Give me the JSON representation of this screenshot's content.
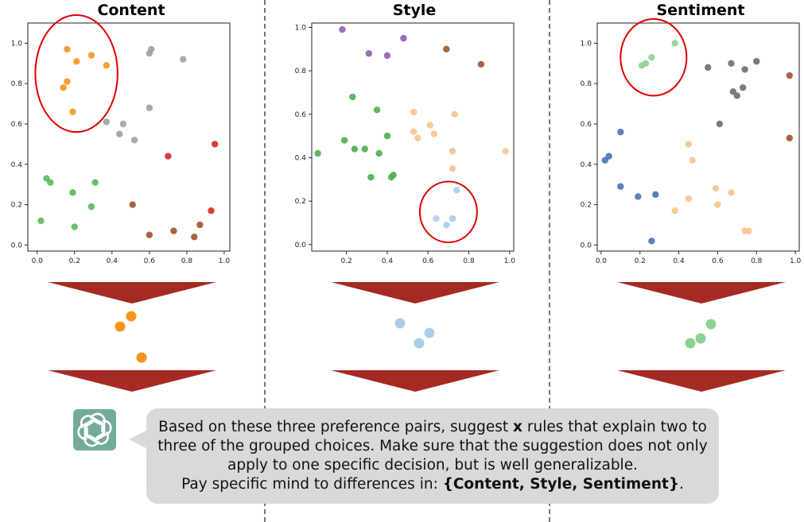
{
  "panels": [
    {
      "title": "Content",
      "x_ticks": [
        "0.0",
        "0.2",
        "0.4",
        "0.6",
        "0.8",
        "1.0"
      ],
      "y_ticks": [
        "0.0",
        "0.2",
        "0.4",
        "0.6",
        "0.8",
        "1.0"
      ],
      "highlight": {
        "cx": 0.21,
        "cy": 0.85,
        "rx": 0.22,
        "ry": 0.29,
        "color": "#e00000"
      },
      "selected_color": "#f7941d",
      "points": [
        {
          "x": 0.16,
          "y": 0.97,
          "c": "#f7941d"
        },
        {
          "x": 0.29,
          "y": 0.94,
          "c": "#f7941d"
        },
        {
          "x": 0.21,
          "y": 0.91,
          "c": "#f7941d"
        },
        {
          "x": 0.37,
          "y": 0.89,
          "c": "#f7941d"
        },
        {
          "x": 0.16,
          "y": 0.81,
          "c": "#f7941d"
        },
        {
          "x": 0.14,
          "y": 0.78,
          "c": "#f7941d"
        },
        {
          "x": 0.19,
          "y": 0.66,
          "c": "#f7941d"
        },
        {
          "x": 0.61,
          "y": 0.97,
          "c": "#a0a0a0"
        },
        {
          "x": 0.6,
          "y": 0.95,
          "c": "#a0a0a0"
        },
        {
          "x": 0.78,
          "y": 0.92,
          "c": "#a0a0a0"
        },
        {
          "x": 0.6,
          "y": 0.68,
          "c": "#a0a0a0"
        },
        {
          "x": 0.37,
          "y": 0.61,
          "c": "#a0a0a0"
        },
        {
          "x": 0.46,
          "y": 0.6,
          "c": "#a0a0a0"
        },
        {
          "x": 0.44,
          "y": 0.55,
          "c": "#a0a0a0"
        },
        {
          "x": 0.52,
          "y": 0.52,
          "c": "#a0a0a0"
        },
        {
          "x": 0.95,
          "y": 0.5,
          "c": "#d62728"
        },
        {
          "x": 0.7,
          "y": 0.44,
          "c": "#d62728"
        },
        {
          "x": 0.93,
          "y": 0.17,
          "c": "#d62728"
        },
        {
          "x": 0.05,
          "y": 0.33,
          "c": "#5cb85c"
        },
        {
          "x": 0.07,
          "y": 0.31,
          "c": "#5cb85c"
        },
        {
          "x": 0.31,
          "y": 0.31,
          "c": "#5cb85c"
        },
        {
          "x": 0.19,
          "y": 0.26,
          "c": "#5cb85c"
        },
        {
          "x": 0.29,
          "y": 0.19,
          "c": "#5cb85c"
        },
        {
          "x": 0.02,
          "y": 0.12,
          "c": "#5cb85c"
        },
        {
          "x": 0.2,
          "y": 0.09,
          "c": "#5cb85c"
        },
        {
          "x": 0.51,
          "y": 0.2,
          "c": "#a0522d"
        },
        {
          "x": 0.6,
          "y": 0.05,
          "c": "#a0522d"
        },
        {
          "x": 0.73,
          "y": 0.07,
          "c": "#a0522d"
        },
        {
          "x": 0.84,
          "y": 0.04,
          "c": "#a0522d"
        },
        {
          "x": 0.87,
          "y": 0.1,
          "c": "#a0522d"
        }
      ]
    },
    {
      "title": "Style",
      "x_ticks": [
        "0.2",
        "0.4",
        "0.6",
        "0.8",
        "1.0"
      ],
      "y_ticks": [
        "0.0",
        "0.2",
        "0.4",
        "0.6",
        "0.8",
        "1.0"
      ],
      "highlight": {
        "cx": 0.7,
        "cy": 0.15,
        "rx": 0.14,
        "ry": 0.14,
        "color": "#e00000"
      },
      "selected_color": "#aecde8",
      "points": [
        {
          "x": 0.18,
          "y": 0.99,
          "c": "#8c5fb3"
        },
        {
          "x": 0.48,
          "y": 0.95,
          "c": "#8c5fb3"
        },
        {
          "x": 0.31,
          "y": 0.88,
          "c": "#8c5fb3"
        },
        {
          "x": 0.4,
          "y": 0.87,
          "c": "#8c5fb3"
        },
        {
          "x": 0.69,
          "y": 0.9,
          "c": "#a0522d"
        },
        {
          "x": 0.86,
          "y": 0.83,
          "c": "#a0522d"
        },
        {
          "x": 0.23,
          "y": 0.68,
          "c": "#4cae4c"
        },
        {
          "x": 0.35,
          "y": 0.62,
          "c": "#4cae4c"
        },
        {
          "x": 0.4,
          "y": 0.5,
          "c": "#4cae4c"
        },
        {
          "x": 0.19,
          "y": 0.48,
          "c": "#4cae4c"
        },
        {
          "x": 0.24,
          "y": 0.44,
          "c": "#4cae4c"
        },
        {
          "x": 0.29,
          "y": 0.44,
          "c": "#4cae4c"
        },
        {
          "x": 0.06,
          "y": 0.42,
          "c": "#4cae4c"
        },
        {
          "x": 0.36,
          "y": 0.42,
          "c": "#4cae4c"
        },
        {
          "x": 0.43,
          "y": 0.32,
          "c": "#4cae4c"
        },
        {
          "x": 0.42,
          "y": 0.31,
          "c": "#4cae4c"
        },
        {
          "x": 0.32,
          "y": 0.31,
          "c": "#4cae4c"
        },
        {
          "x": 0.53,
          "y": 0.61,
          "c": "#f7c48f"
        },
        {
          "x": 0.73,
          "y": 0.6,
          "c": "#f7c48f"
        },
        {
          "x": 0.61,
          "y": 0.55,
          "c": "#f7c48f"
        },
        {
          "x": 0.53,
          "y": 0.52,
          "c": "#f7c48f"
        },
        {
          "x": 0.63,
          "y": 0.51,
          "c": "#f7c48f"
        },
        {
          "x": 0.55,
          "y": 0.49,
          "c": "#f7c48f"
        },
        {
          "x": 0.72,
          "y": 0.43,
          "c": "#f7c48f"
        },
        {
          "x": 0.98,
          "y": 0.43,
          "c": "#f7c48f"
        },
        {
          "x": 0.72,
          "y": 0.35,
          "c": "#f7c48f"
        },
        {
          "x": 0.74,
          "y": 0.25,
          "c": "#aecde8"
        },
        {
          "x": 0.64,
          "y": 0.12,
          "c": "#aecde8"
        },
        {
          "x": 0.72,
          "y": 0.12,
          "c": "#aecde8"
        },
        {
          "x": 0.69,
          "y": 0.09,
          "c": "#aecde8"
        }
      ]
    },
    {
      "title": "Sentiment",
      "x_ticks": [
        "0.0",
        "0.2",
        "0.4",
        "0.6",
        "0.8",
        "1.0"
      ],
      "y_ticks": [
        "0.0",
        "0.2",
        "0.4",
        "0.6",
        "0.8",
        "1.0"
      ],
      "highlight": {
        "cx": 0.27,
        "cy": 0.93,
        "rx": 0.17,
        "ry": 0.19,
        "color": "#e00000"
      },
      "selected_color": "#8fd18f",
      "points": [
        {
          "x": 0.38,
          "y": 1.0,
          "c": "#8fd18f"
        },
        {
          "x": 0.26,
          "y": 0.93,
          "c": "#8fd18f"
        },
        {
          "x": 0.23,
          "y": 0.9,
          "c": "#8fd18f"
        },
        {
          "x": 0.21,
          "y": 0.89,
          "c": "#8fd18f"
        },
        {
          "x": 0.67,
          "y": 0.9,
          "c": "#6e6e6e"
        },
        {
          "x": 0.8,
          "y": 0.91,
          "c": "#6e6e6e"
        },
        {
          "x": 0.55,
          "y": 0.88,
          "c": "#6e6e6e"
        },
        {
          "x": 0.74,
          "y": 0.87,
          "c": "#6e6e6e"
        },
        {
          "x": 0.73,
          "y": 0.78,
          "c": "#6e6e6e"
        },
        {
          "x": 0.68,
          "y": 0.76,
          "c": "#6e6e6e"
        },
        {
          "x": 0.7,
          "y": 0.74,
          "c": "#6e6e6e"
        },
        {
          "x": 0.61,
          "y": 0.6,
          "c": "#6e6e6e"
        },
        {
          "x": 0.97,
          "y": 0.84,
          "c": "#a0522d"
        },
        {
          "x": 0.97,
          "y": 0.53,
          "c": "#a0522d"
        },
        {
          "x": 0.1,
          "y": 0.56,
          "c": "#4a72b8"
        },
        {
          "x": 0.04,
          "y": 0.44,
          "c": "#4a72b8"
        },
        {
          "x": 0.02,
          "y": 0.42,
          "c": "#4a72b8"
        },
        {
          "x": 0.1,
          "y": 0.29,
          "c": "#4a72b8"
        },
        {
          "x": 0.19,
          "y": 0.24,
          "c": "#4a72b8"
        },
        {
          "x": 0.28,
          "y": 0.25,
          "c": "#4a72b8"
        },
        {
          "x": 0.26,
          "y": 0.02,
          "c": "#4a72b8"
        },
        {
          "x": 0.45,
          "y": 0.5,
          "c": "#f7c48f"
        },
        {
          "x": 0.47,
          "y": 0.42,
          "c": "#f7c48f"
        },
        {
          "x": 0.59,
          "y": 0.28,
          "c": "#f7c48f"
        },
        {
          "x": 0.67,
          "y": 0.26,
          "c": "#f7c48f"
        },
        {
          "x": 0.45,
          "y": 0.23,
          "c": "#f7c48f"
        },
        {
          "x": 0.6,
          "y": 0.2,
          "c": "#f7c48f"
        },
        {
          "x": 0.38,
          "y": 0.17,
          "c": "#f7c48f"
        },
        {
          "x": 0.74,
          "y": 0.07,
          "c": "#f7c48f"
        },
        {
          "x": 0.76,
          "y": 0.07,
          "c": "#f7c48f"
        }
      ]
    }
  ],
  "arrow_color": "#a52a23",
  "prompt": {
    "line1": "Based on these three preference pairs, suggest ",
    "line1_bold": "x",
    "line1_end": " rules that explain two to",
    "line2": "three of the grouped choices. Make sure that the suggestion does not only",
    "line3": "apply to one specific decision, but is well generalizable.",
    "line4": "Pay specific mind to differences in: ",
    "line4_bold": "{Content, Style, Sentiment}",
    "line4_end": "."
  },
  "logo_icon": "openai-logo-icon"
}
